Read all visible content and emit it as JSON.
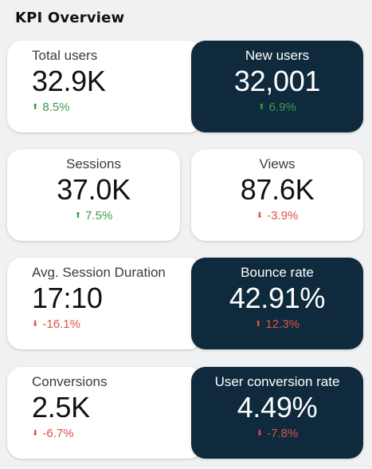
{
  "header": {
    "title": "KPI Overview"
  },
  "cards": [
    {
      "label": "Total users",
      "value": "32.9K",
      "delta": "8.5%",
      "direction": "up",
      "arrow": "⬆"
    },
    {
      "label": "New users",
      "value": "32,001",
      "delta": "6.9%",
      "direction": "up",
      "arrow": "⬆"
    },
    {
      "label": "Sessions",
      "value": "37.0K",
      "delta": "7.5%",
      "direction": "up",
      "arrow": "⬆"
    },
    {
      "label": "Views",
      "value": "87.6K",
      "delta": "-3.9%",
      "direction": "down",
      "arrow": "⬇"
    },
    {
      "label": "Avg. Session Duration",
      "value": "17:10",
      "delta": "-16.1%",
      "direction": "down",
      "arrow": "⬇"
    },
    {
      "label": "Bounce rate",
      "value": "42.91%",
      "delta": "12.3%",
      "direction": "up-bad",
      "arrow": "⬆"
    },
    {
      "label": "Conversions",
      "value": "2.5K",
      "delta": "-6.7%",
      "direction": "down",
      "arrow": "⬇"
    },
    {
      "label": "User conversion rate",
      "value": "4.49%",
      "delta": "-7.8%",
      "direction": "down",
      "arrow": "⬇"
    }
  ],
  "colors": {
    "dark_card": "#0e2a3c",
    "positive": "#3f9b4d",
    "negative": "#e2504a"
  }
}
